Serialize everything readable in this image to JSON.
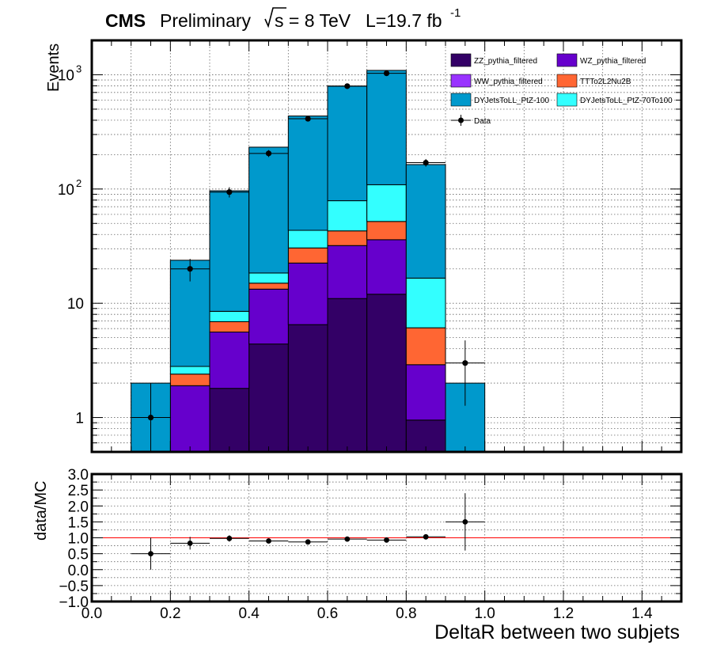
{
  "header": {
    "experiment": "CMS",
    "status": "Preliminary",
    "sqrt_s": "s = 8 TeV",
    "lumi": "L=19.7 fb",
    "lumi_exp": "-1"
  },
  "chart_data": [
    {
      "type": "stacked-histogram",
      "ylabel": "Events",
      "ylog": true,
      "ylim": [
        0.5,
        2000
      ],
      "xlim": [
        0.0,
        1.5
      ],
      "bin_edges": [
        0.1,
        0.2,
        0.3,
        0.4,
        0.5,
        0.6,
        0.7,
        0.8,
        0.9,
        1.0
      ],
      "y_ticks": [
        {
          "value": 1,
          "label": "1"
        },
        {
          "value": 10,
          "label": "10"
        },
        {
          "value": 100,
          "label": "10",
          "exp": "2"
        },
        {
          "value": 1000,
          "label": "10",
          "exp": "3"
        }
      ],
      "grid": true,
      "legend_position": "top-right",
      "series": [
        {
          "name": "ZZ_pythia_filtered",
          "color": "#330066",
          "values": [
            0,
            0,
            1.8,
            4.4,
            6.5,
            11,
            12,
            0.95,
            0
          ]
        },
        {
          "name": "WZ_pythia_filtered",
          "color": "#6600cc",
          "values": [
            0,
            1.9,
            3.8,
            8.9,
            16,
            21,
            24,
            1.95,
            0
          ]
        },
        {
          "name": "WW_pythia_filtered",
          "color": "#9933ff",
          "values": [
            0,
            0,
            0,
            0,
            0,
            0,
            0,
            0,
            0
          ]
        },
        {
          "name": "TTTo2L2Nu2B",
          "color": "#ff6633",
          "values": [
            0,
            0.5,
            1.3,
            1.7,
            8,
            11,
            16,
            3.2,
            0
          ]
        },
        {
          "name": "DYJetsToLL_PtZ-70To100",
          "color": "#33ffff",
          "values": [
            0,
            0.4,
            1.6,
            3.4,
            13,
            36,
            57,
            10.5,
            0
          ]
        },
        {
          "name": "DYJetsToLL_PtZ-100",
          "color": "#0099cc",
          "values": [
            2,
            21,
            88,
            214,
            392,
            718,
            983,
            147,
            2
          ]
        }
      ],
      "data": {
        "name": "Data",
        "x": [
          0.15,
          0.25,
          0.35,
          0.45,
          0.55,
          0.65,
          0.75,
          0.85,
          0.95
        ],
        "y": [
          1,
          20,
          94,
          205,
          412,
          795,
          1030,
          170,
          3
        ]
      }
    },
    {
      "type": "scatter",
      "ylabel": "data/MC",
      "xlabel": "DeltaR between two subjets",
      "xlim": [
        0.0,
        1.5
      ],
      "ylim": [
        -1.0,
        3.0
      ],
      "x_ticks": [
        "0.0",
        "0.2",
        "0.4",
        "0.6",
        "0.8",
        "1.0",
        "1.2",
        "1.4"
      ],
      "y_ticks": [
        "−1.0",
        "−0.5",
        "0.0",
        "0.5",
        "1.0",
        "1.5",
        "2.0",
        "2.5",
        "3.0"
      ],
      "reference_line": 1.0,
      "x": [
        0.15,
        0.25,
        0.35,
        0.45,
        0.55,
        0.65,
        0.75,
        0.85,
        0.95
      ],
      "y": [
        0.5,
        0.83,
        0.98,
        0.9,
        0.87,
        0.96,
        0.93,
        1.03,
        1.5
      ],
      "yerr": [
        0.5,
        0.2,
        0.1,
        0.06,
        0.04,
        0.03,
        0.03,
        0.07,
        0.9
      ]
    }
  ]
}
